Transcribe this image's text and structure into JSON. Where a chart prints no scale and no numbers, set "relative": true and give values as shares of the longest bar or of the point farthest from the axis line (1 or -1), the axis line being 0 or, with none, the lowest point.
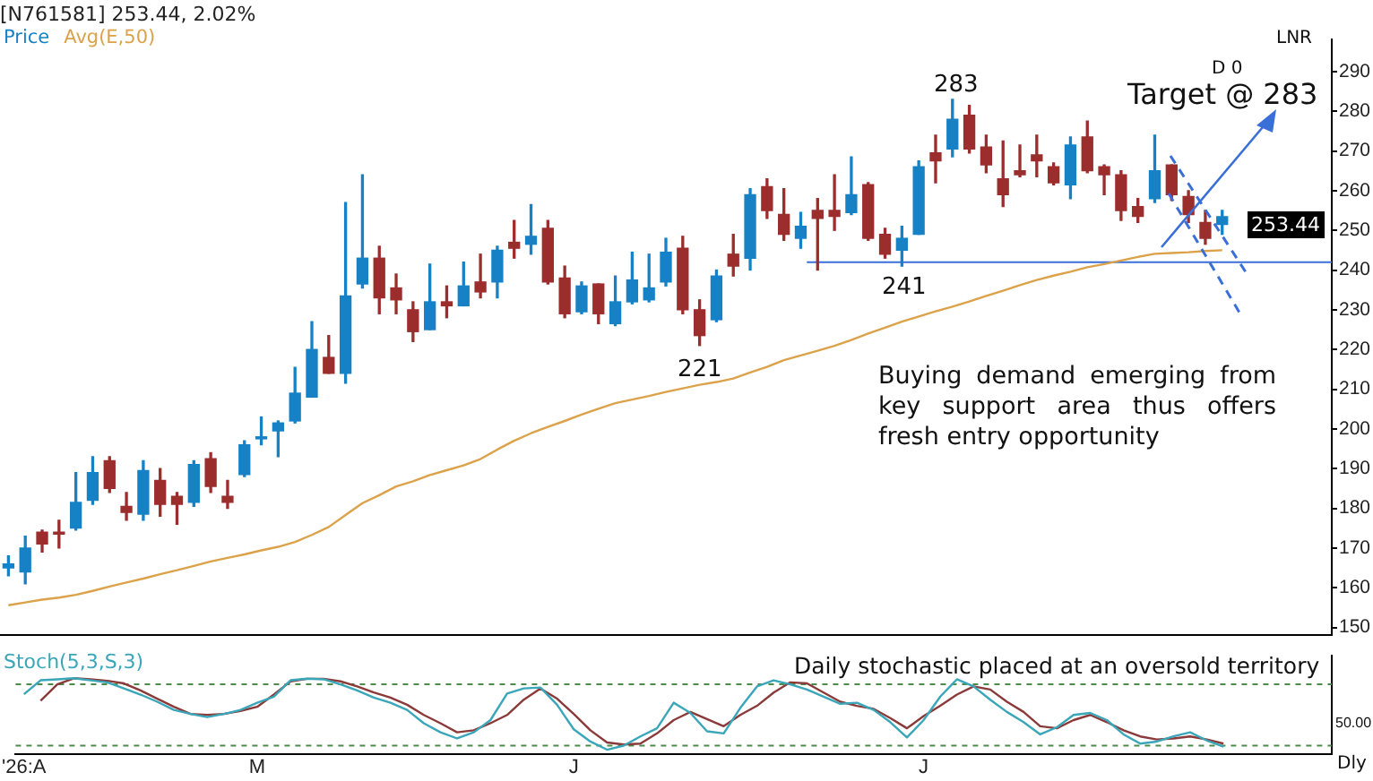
{
  "chart_data": [
    {
      "type": "candlestick",
      "title": "[N761581] 253.44, 2.02%",
      "legend": "top left",
      "tick_labels": "y",
      "categories": [
        null,
        null,
        null,
        null,
        null,
        null,
        null,
        null,
        null,
        null,
        null,
        null,
        null,
        null,
        null,
        null,
        null,
        null,
        null,
        null,
        null,
        null,
        null,
        null,
        null,
        null,
        null,
        null,
        null,
        null,
        null,
        null,
        null,
        null,
        null,
        null,
        null,
        null,
        null,
        null,
        null,
        null,
        null,
        null,
        null,
        null,
        null,
        null,
        null,
        null,
        null,
        null,
        null,
        null,
        null,
        null,
        null,
        null,
        null,
        null,
        null,
        null,
        null,
        null,
        null,
        null,
        null,
        null,
        null,
        null,
        null,
        null,
        null,
        null,
        null,
        null,
        null,
        null,
        null
      ],
      "ylim": [
        148,
        298
      ],
      "yticks": [
        150,
        160,
        170,
        180,
        190,
        200,
        210,
        220,
        230,
        240,
        250,
        260,
        270,
        280,
        290
      ],
      "series": [
        {
          "name": "Price",
          "color": "#1682c5",
          "ohlc": [
            [
              165,
              168,
              163,
              166
            ],
            [
              164,
              173,
              161,
              170
            ],
            [
              174,
              174.5,
              169,
              171
            ],
            [
              174,
              177,
              170,
              173.5
            ],
            [
              175,
              189,
              174.5,
              181.5
            ],
            [
              182,
              193,
              181,
              189
            ],
            [
              192,
              193,
              184,
              185
            ],
            [
              180.5,
              184,
              177,
              179
            ],
            [
              178.5,
              192,
              177,
              189.5
            ],
            [
              187,
              190,
              178,
              181
            ],
            [
              183,
              184,
              176,
              181
            ],
            [
              181.5,
              192,
              180.5,
              191
            ],
            [
              192.5,
              194,
              184,
              185.5
            ],
            [
              183,
              187,
              180,
              181.5
            ],
            [
              188.5,
              197,
              188,
              196
            ],
            [
              197.5,
              203,
              196,
              198
            ],
            [
              199.5,
              202,
              193,
              201.5
            ],
            [
              202,
              215.5,
              201.5,
              209
            ],
            [
              208,
              227,
              208,
              220
            ],
            [
              218,
              223.5,
              214,
              214
            ],
            [
              214,
              257,
              211.5,
              233.5
            ],
            [
              236.5,
              264,
              235.5,
              243
            ],
            [
              243,
              246,
              229,
              233
            ],
            [
              235.5,
              239,
              229,
              232.5
            ],
            [
              230,
              232,
              222,
              224.5
            ],
            [
              225,
              241.5,
              225,
              232
            ],
            [
              232,
              236,
              228,
              231
            ],
            [
              231,
              242,
              231,
              236
            ],
            [
              237,
              244,
              233,
              234.5
            ],
            [
              237,
              246,
              233,
              245
            ],
            [
              247,
              252.5,
              243,
              245.5
            ],
            [
              246.5,
              256.5,
              244,
              248.5
            ],
            [
              250.5,
              252.5,
              236.5,
              237
            ],
            [
              238,
              241,
              228,
              229
            ],
            [
              229.5,
              237,
              229,
              236
            ],
            [
              236.5,
              236.5,
              226.5,
              229
            ],
            [
              226.5,
              238.5,
              226,
              232
            ],
            [
              232,
              244.5,
              231.5,
              237.5
            ],
            [
              232.5,
              244,
              232,
              235.5
            ],
            [
              237,
              248,
              236,
              244.5
            ],
            [
              245.5,
              248.5,
              229,
              230
            ],
            [
              230,
              232.5,
              221,
              223.5
            ],
            [
              227.5,
              240,
              227,
              238.5
            ],
            [
              244,
              249,
              238.5,
              241
            ],
            [
              243,
              260.5,
              240,
              259
            ],
            [
              261,
              263,
              253,
              255
            ],
            [
              254,
              260.5,
              247.5,
              249
            ],
            [
              248,
              254.5,
              245.5,
              251
            ],
            [
              255,
              258,
              240,
              253
            ],
            [
              255,
              264,
              250,
              253.5
            ],
            [
              254.5,
              268.5,
              254,
              259
            ],
            [
              261.5,
              262,
              247.5,
              248
            ],
            [
              249,
              250.5,
              243,
              244
            ],
            [
              245,
              251,
              241,
              248
            ],
            [
              249,
              267.5,
              249,
              266
            ],
            [
              269.5,
              274,
              262,
              267.5
            ],
            [
              270.5,
              283,
              268.5,
              278
            ],
            [
              279,
              281.5,
              269.5,
              270.5
            ],
            [
              271,
              274,
              264.5,
              266.5
            ],
            [
              263,
              272.5,
              256,
              259
            ],
            [
              265,
              271.5,
              263.5,
              264
            ],
            [
              269,
              274,
              263.5,
              267.5
            ],
            [
              266,
              267,
              261.5,
              262
            ],
            [
              261.5,
              273.5,
              258,
              271.5
            ],
            [
              273.5,
              277.5,
              264.5,
              265
            ],
            [
              266,
              266.5,
              259,
              264
            ],
            [
              264,
              265,
              252.5,
              255
            ],
            [
              256,
              258,
              252,
              253.5
            ],
            [
              258,
              274,
              257,
              265
            ],
            [
              266.5,
              266.5,
              257.5,
              259
            ],
            [
              258.5,
              260,
              252,
              254
            ],
            [
              252,
              255,
              246.5,
              248
            ],
            [
              251.5,
              255,
              249,
              253.44
            ],
            null,
            null,
            null,
            null,
            null,
            null
          ],
          "colors": [
            "#1682c5",
            "#1682c5",
            "#9b2d2d",
            "#9b2d2d",
            "#1682c5",
            "#1682c5",
            "#9b2d2d",
            "#9b2d2d",
            "#1682c5",
            "#9b2d2d",
            "#9b2d2d",
            "#1682c5",
            "#9b2d2d",
            "#9b2d2d",
            "#1682c5",
            "#1682c5",
            "#1682c5",
            "#1682c5",
            "#1682c5",
            "#9b2d2d",
            "#1682c5",
            "#1682c5",
            "#9b2d2d",
            "#9b2d2d",
            "#9b2d2d",
            "#1682c5",
            "#9b2d2d",
            "#1682c5",
            "#9b2d2d",
            "#1682c5",
            "#9b2d2d",
            "#1682c5",
            "#9b2d2d",
            "#9b2d2d",
            "#1682c5",
            "#9b2d2d",
            "#1682c5",
            "#1682c5",
            "#1682c5",
            "#1682c5",
            "#9b2d2d",
            "#9b2d2d",
            "#1682c5",
            "#9b2d2d",
            "#1682c5",
            "#9b2d2d",
            "#9b2d2d",
            "#1682c5",
            "#9b2d2d",
            "#9b2d2d",
            "#1682c5",
            "#9b2d2d",
            "#9b2d2d",
            "#1682c5",
            "#1682c5",
            "#9b2d2d",
            "#1682c5",
            "#9b2d2d",
            "#9b2d2d",
            "#9b2d2d",
            "#9b2d2d",
            "#9b2d2d",
            "#9b2d2d",
            "#1682c5",
            "#9b2d2d",
            "#9b2d2d",
            "#9b2d2d",
            "#9b2d2d",
            "#1682c5",
            "#9b2d2d",
            "#9b2d2d",
            "#9b2d2d",
            "#1682c5",
            null,
            null,
            null,
            null,
            null,
            null
          ]
        },
        {
          "name": "Avg(E,50)",
          "type": "line",
          "color": "#dba24a",
          "values": [
            155.6,
            156.3,
            157,
            157.5,
            158.2,
            159.2,
            160.3,
            161.3,
            162.3,
            163.4,
            164.4,
            165.5,
            166.6,
            167.5,
            168.4,
            169.4,
            170.3,
            171.5,
            173.3,
            175.3,
            178.3,
            181.3,
            183.3,
            185.5,
            186.8,
            188.4,
            189.6,
            190.8,
            192.4,
            194.8,
            197,
            198.9,
            200.5,
            202,
            203.6,
            205.1,
            206.5,
            207.4,
            208.3,
            209.3,
            210.2,
            211.1,
            211.8,
            212.7,
            214.2,
            215.6,
            217.3,
            218.5,
            219.7,
            220.9,
            222.4,
            224,
            225.5,
            227,
            228.3,
            229.6,
            230.8,
            232.1,
            233.5,
            234.8,
            236.2,
            237.5,
            238.6,
            239.6,
            240.7,
            241.5,
            242.4,
            243.3,
            244.1,
            244.3,
            244.5,
            244.8,
            245,
            null,
            null,
            null,
            null,
            null,
            null
          ]
        }
      ],
      "ref_lines": [
        {
          "axis": "y",
          "value": 242,
          "color": "#3a6fd8"
        }
      ],
      "annotations": [
        "283",
        "241",
        "221",
        "Target @ 283",
        "Buying demand emerging from key support area thus offers fresh entry opportunity",
        "D 0",
        "LNR",
        "253.44"
      ]
    },
    {
      "type": "line",
      "title": "Stoch(5,3,S,3)",
      "line_style": "solid",
      "marker": "none",
      "categories": [
        "'26:A",
        null,
        null,
        null,
        null,
        null,
        null,
        null,
        null,
        null,
        null,
        null,
        null,
        null,
        "M",
        null,
        null,
        null,
        null,
        null,
        null,
        null,
        null,
        null,
        null,
        null,
        null,
        null,
        null,
        null,
        null,
        null,
        null,
        "J",
        null,
        null,
        null,
        null,
        null,
        null,
        null,
        null,
        null,
        null,
        null,
        null,
        null,
        null,
        null,
        null,
        null,
        null,
        null,
        null,
        "J",
        null,
        null,
        null,
        null,
        null,
        null,
        null,
        null,
        null,
        null,
        null,
        null,
        null,
        null,
        null,
        null,
        null,
        null,
        null,
        null,
        null,
        null,
        null,
        null
      ],
      "relative": true,
      "series": [
        {
          "color": "#3aa6b9",
          "values": [
            0.789,
            0.973,
            0.986,
            1,
            0.973,
            0.946,
            0.865,
            0.784,
            0.689,
            0.581,
            0.527,
            0.486,
            0.527,
            0.581,
            0.676,
            0.757,
            0.973,
            0.995,
            0.986,
            0.919,
            0.838,
            0.743,
            0.676,
            0.581,
            0.405,
            0.284,
            0.203,
            0.284,
            0.446,
            0.797,
            0.865,
            0.878,
            0.649,
            0.324,
            0.162,
            0.054,
            0.108,
            0.23,
            0.338,
            0.676,
            0.541,
            0.297,
            0.27,
            0.608,
            0.892,
            0.973,
            0.919,
            0.851,
            0.757,
            0.662,
            0.676,
            0.581,
            0.419,
            0.216,
            0.446,
            0.757,
            0.986,
            0.892,
            0.716,
            0.554,
            0.419,
            0.257,
            0.351,
            0.514,
            0.541,
            0.446,
            0.257,
            0.135,
            0.162,
            0.23,
            0.284,
            0.176,
            0.095,
            null,
            null,
            null,
            null,
            null,
            null
          ]
        },
        {
          "color": "#8b3a3a",
          "values": [
            null,
            0.703,
            0.919,
            1,
            0.986,
            0.966,
            0.932,
            0.838,
            0.73,
            0.622,
            0.527,
            0.514,
            0.527,
            0.568,
            0.622,
            0.784,
            0.959,
            0.993,
            0.993,
            0.959,
            0.892,
            0.811,
            0.743,
            0.649,
            0.514,
            0.405,
            0.284,
            0.311,
            0.405,
            0.514,
            0.716,
            0.865,
            0.73,
            0.527,
            0.311,
            0.149,
            0.122,
            0.135,
            0.27,
            0.446,
            0.554,
            0.459,
            0.365,
            0.514,
            0.635,
            0.811,
            0.946,
            0.932,
            0.811,
            0.689,
            0.635,
            0.595,
            0.473,
            0.338,
            0.5,
            0.635,
            0.784,
            0.892,
            0.851,
            0.689,
            0.554,
            0.365,
            0.338,
            0.446,
            0.514,
            0.419,
            0.311,
            0.23,
            0.189,
            0.203,
            0.23,
            0.189,
            0.135,
            null,
            null,
            null,
            null,
            null,
            null
          ]
        }
      ],
      "ref_lines": [
        {
          "axis": "y",
          "value": 0.919,
          "color": "#4a8a4a",
          "line_style": "dashed"
        },
        {
          "axis": "y",
          "value": 0.108,
          "color": "#4a8a4a",
          "line_style": "dashed"
        }
      ],
      "annotations": [
        "Daily stochastic placed at an oversold territory",
        "Dly",
        "50.00"
      ]
    }
  ]
}
